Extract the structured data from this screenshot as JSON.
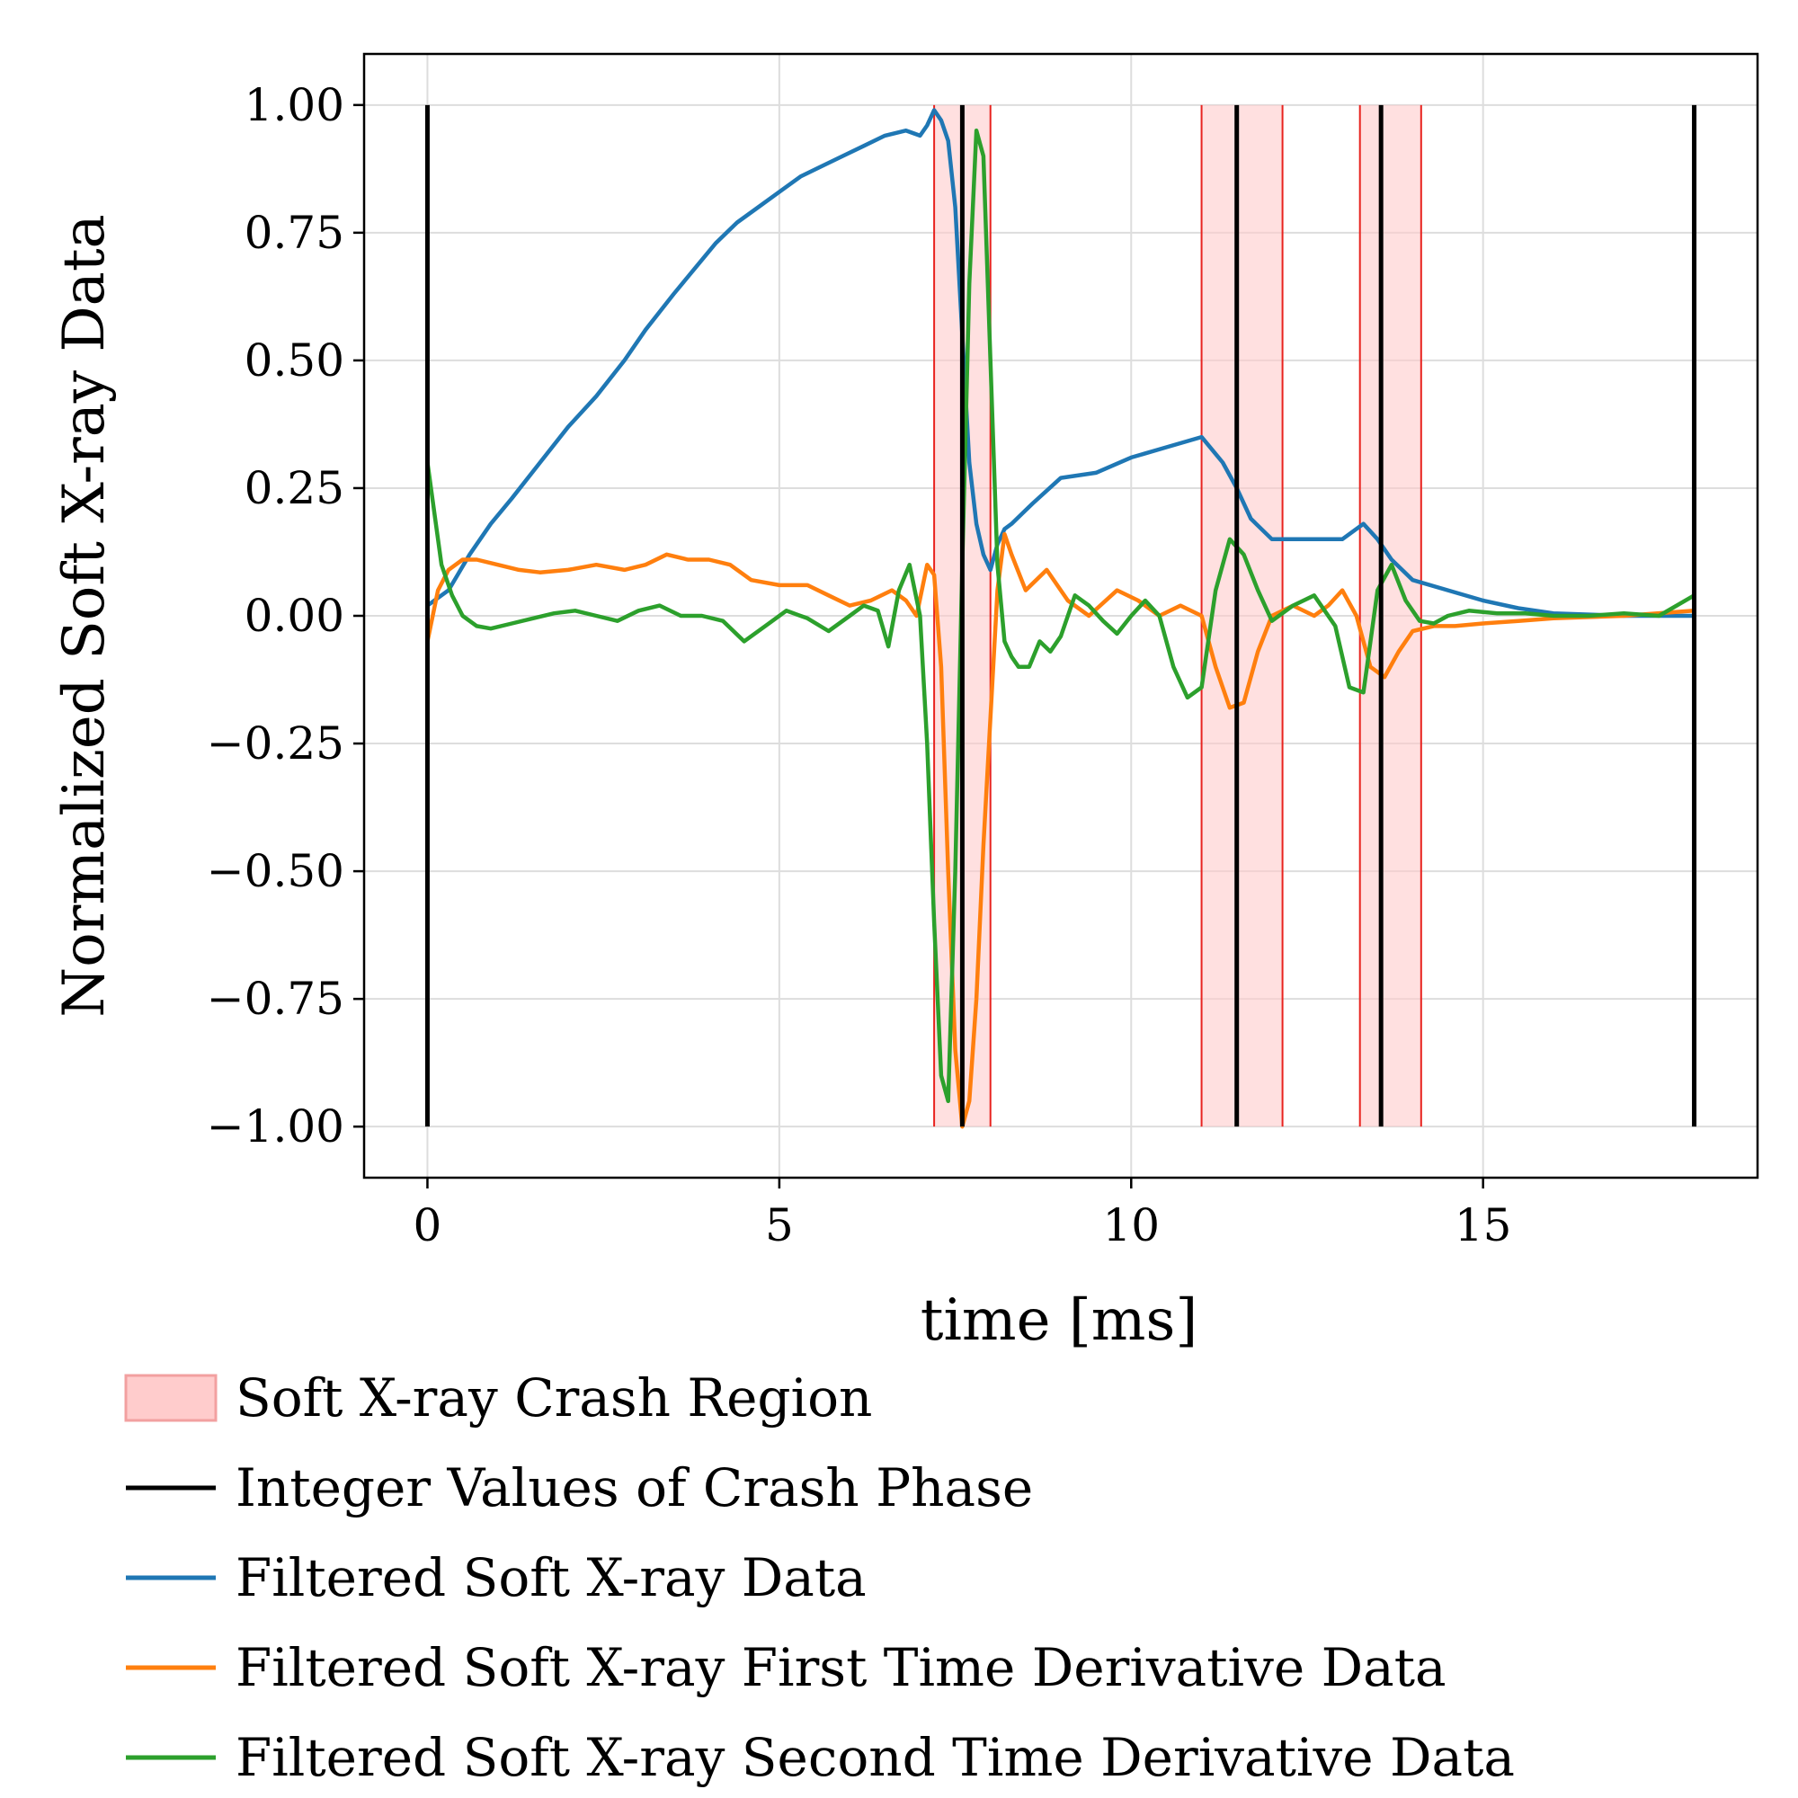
{
  "chart_data": {
    "type": "line",
    "xlabel": "time [ms]",
    "ylabel": "Normalized Soft X-ray Data",
    "xlim": [
      -0.9,
      18.9
    ],
    "ylim": [
      -1.1,
      1.1
    ],
    "xticks": [
      0,
      5,
      10,
      15
    ],
    "xtick_labels": [
      "0",
      "5",
      "10",
      "15"
    ],
    "yticks": [
      1.0,
      0.75,
      0.5,
      0.25,
      0.0,
      -0.25,
      -0.5,
      -0.75,
      -1.0
    ],
    "ytick_labels": [
      "1.00",
      "0.75",
      "0.50",
      "0.25",
      "0.00",
      "−0.25",
      "−0.50",
      "−0.75",
      "−1.00"
    ],
    "grid": true,
    "legend_position": "below",
    "colors": {
      "region_fill": "#ffcccc",
      "region_edge": "#e8231f",
      "phase": "#000000",
      "filtered": "#1f77b4",
      "first_derivative": "#ff7f0e",
      "second_derivative": "#2ca02c"
    },
    "crash_regions": [
      [
        7.2,
        8.0
      ],
      [
        11.0,
        12.15
      ],
      [
        13.25,
        14.12
      ]
    ],
    "phase_lines": {
      "x": [
        0,
        7.6,
        11.5,
        13.55,
        18.0
      ],
      "ymin": -1.0,
      "ymax": 1.0
    },
    "series": [
      {
        "name": "Filtered Soft X-ray Data",
        "x": [
          0,
          0.3,
          0.6,
          0.9,
          1.2,
          1.6,
          2.0,
          2.4,
          2.8,
          3.1,
          3.5,
          3.8,
          4.1,
          4.4,
          4.7,
          5.0,
          5.3,
          5.6,
          5.9,
          6.2,
          6.5,
          6.8,
          7.0,
          7.1,
          7.2,
          7.3,
          7.4,
          7.5,
          7.6,
          7.7,
          7.8,
          7.9,
          8.0,
          8.1,
          8.2,
          8.3,
          8.6,
          9.0,
          9.5,
          10.0,
          10.5,
          11.0,
          11.3,
          11.5,
          11.7,
          12.0,
          12.5,
          13.0,
          13.3,
          13.5,
          13.7,
          14.0,
          14.5,
          15.0,
          15.5,
          16.0,
          17.0,
          18.0
        ],
        "values": [
          0.02,
          0.05,
          0.12,
          0.18,
          0.23,
          0.3,
          0.37,
          0.43,
          0.5,
          0.56,
          0.63,
          0.68,
          0.73,
          0.77,
          0.8,
          0.83,
          0.86,
          0.88,
          0.9,
          0.92,
          0.94,
          0.95,
          0.94,
          0.96,
          0.99,
          0.97,
          0.93,
          0.8,
          0.55,
          0.3,
          0.18,
          0.12,
          0.09,
          0.14,
          0.17,
          0.18,
          0.22,
          0.27,
          0.28,
          0.31,
          0.33,
          0.35,
          0.3,
          0.25,
          0.19,
          0.15,
          0.15,
          0.15,
          0.18,
          0.15,
          0.11,
          0.07,
          0.05,
          0.03,
          0.015,
          0.005,
          0.0,
          0.0
        ]
      },
      {
        "name": "Filtered Soft X-ray First Time Derivative Data",
        "x": [
          0,
          0.15,
          0.3,
          0.5,
          0.7,
          1.0,
          1.3,
          1.6,
          2.0,
          2.4,
          2.8,
          3.1,
          3.4,
          3.7,
          4.0,
          4.3,
          4.6,
          5.0,
          5.4,
          5.7,
          6.0,
          6.3,
          6.6,
          6.8,
          6.95,
          7.1,
          7.2,
          7.3,
          7.4,
          7.5,
          7.6,
          7.7,
          7.8,
          7.9,
          8.0,
          8.1,
          8.2,
          8.3,
          8.5,
          8.8,
          9.1,
          9.4,
          9.8,
          10.1,
          10.4,
          10.7,
          11.0,
          11.2,
          11.4,
          11.6,
          11.8,
          12.0,
          12.3,
          12.6,
          12.8,
          13.0,
          13.2,
          13.4,
          13.6,
          13.8,
          14.0,
          14.3,
          14.6,
          15.0,
          15.5,
          16.0,
          17.0,
          18.0
        ],
        "values": [
          -0.05,
          0.05,
          0.09,
          0.11,
          0.11,
          0.1,
          0.09,
          0.085,
          0.09,
          0.1,
          0.09,
          0.1,
          0.12,
          0.11,
          0.11,
          0.1,
          0.07,
          0.06,
          0.06,
          0.04,
          0.02,
          0.03,
          0.05,
          0.03,
          0.0,
          0.1,
          0.08,
          -0.1,
          -0.5,
          -0.85,
          -1.0,
          -0.95,
          -0.75,
          -0.45,
          -0.2,
          0.05,
          0.16,
          0.12,
          0.05,
          0.09,
          0.03,
          0.0,
          0.05,
          0.03,
          0.0,
          0.02,
          0.0,
          -0.1,
          -0.18,
          -0.17,
          -0.07,
          0.0,
          0.02,
          0.0,
          0.02,
          0.05,
          0.0,
          -0.1,
          -0.12,
          -0.07,
          -0.03,
          -0.02,
          -0.02,
          -0.015,
          -0.01,
          -0.005,
          0.0,
          0.01
        ]
      },
      {
        "name": "Filtered Soft X-ray Second Time Derivative Data",
        "x": [
          0,
          0.1,
          0.2,
          0.35,
          0.5,
          0.7,
          0.9,
          1.2,
          1.5,
          1.8,
          2.1,
          2.4,
          2.7,
          3.0,
          3.3,
          3.6,
          3.9,
          4.2,
          4.5,
          4.8,
          5.1,
          5.4,
          5.7,
          6.0,
          6.2,
          6.4,
          6.55,
          6.7,
          6.85,
          7.0,
          7.1,
          7.2,
          7.3,
          7.4,
          7.5,
          7.6,
          7.7,
          7.8,
          7.9,
          8.0,
          8.1,
          8.2,
          8.3,
          8.4,
          8.55,
          8.7,
          8.85,
          9.0,
          9.2,
          9.4,
          9.6,
          9.8,
          10.0,
          10.2,
          10.4,
          10.6,
          10.8,
          11.0,
          11.2,
          11.4,
          11.6,
          11.8,
          12.0,
          12.3,
          12.6,
          12.9,
          13.1,
          13.3,
          13.5,
          13.7,
          13.9,
          14.1,
          14.3,
          14.5,
          14.8,
          15.2,
          15.6,
          16.0,
          16.5,
          17.0,
          17.5,
          18.0
        ],
        "values": [
          0.3,
          0.2,
          0.1,
          0.04,
          0.0,
          -0.02,
          -0.025,
          -0.015,
          -0.005,
          0.005,
          0.01,
          0.0,
          -0.01,
          0.01,
          0.02,
          0.0,
          0.0,
          -0.01,
          -0.05,
          -0.02,
          0.01,
          -0.005,
          -0.03,
          0.0,
          0.02,
          0.01,
          -0.06,
          0.05,
          0.1,
          0.0,
          -0.25,
          -0.6,
          -0.9,
          -0.95,
          -0.5,
          0.1,
          0.65,
          0.95,
          0.9,
          0.5,
          0.1,
          -0.05,
          -0.08,
          -0.1,
          -0.1,
          -0.05,
          -0.07,
          -0.04,
          0.04,
          0.02,
          -0.01,
          -0.035,
          0.0,
          0.03,
          0.0,
          -0.1,
          -0.16,
          -0.14,
          0.05,
          0.15,
          0.12,
          0.05,
          -0.01,
          0.02,
          0.04,
          -0.02,
          -0.14,
          -0.15,
          0.05,
          0.1,
          0.03,
          -0.01,
          -0.015,
          0.0,
          0.01,
          0.005,
          0.005,
          0.0,
          0.0,
          0.005,
          0.0,
          0.04
        ]
      }
    ],
    "legend": [
      {
        "label": "Soft X-ray Crash Region",
        "kind": "patch",
        "color": "#ffcccc"
      },
      {
        "label": "Integer Values of Crash Phase",
        "kind": "line",
        "color": "#000000"
      },
      {
        "label": "Filtered Soft X-ray Data",
        "kind": "line",
        "color": "#1f77b4"
      },
      {
        "label": "Filtered Soft X-ray First Time Derivative Data",
        "kind": "line",
        "color": "#ff7f0e"
      },
      {
        "label": "Filtered Soft X-ray Second Time Derivative Data",
        "kind": "line",
        "color": "#2ca02c"
      }
    ]
  }
}
